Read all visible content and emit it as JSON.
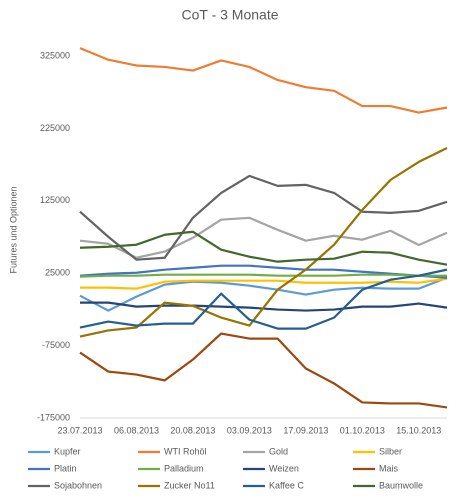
{
  "chart_data": {
    "type": "line",
    "title": "CoT - 3 Monate",
    "y_label": "Futures und Optionen",
    "categories": [
      "23.07.2013",
      null,
      "06.08.2013",
      null,
      "20.08.2013",
      null,
      "03.09.2013",
      null,
      "17.09.2013",
      null,
      "01.10.2013",
      null,
      "15.10.2013",
      null
    ],
    "ylim": [
      -175000,
      350000
    ],
    "yticks": [
      -175000,
      -75000,
      25000,
      125000,
      225000,
      325000
    ],
    "grid": false,
    "series": [
      {
        "name": "Kupfer",
        "color": "#5b9bd5",
        "values": [
          -6000,
          -26600,
          -7300,
          9300,
          13300,
          11900,
          7800,
          2300,
          -4500,
          2300,
          5000,
          3700,
          3700,
          18800
        ]
      },
      {
        "name": "WTI Rohöl",
        "color": "#ed7d31",
        "values": [
          336000,
          320000,
          312000,
          310000,
          305000,
          319000,
          310000,
          292000,
          282000,
          277000,
          256000,
          256000,
          247000,
          254000
        ]
      },
      {
        "name": "Gold",
        "color": "#a5a5a5",
        "values": [
          70000,
          65700,
          46400,
          55000,
          74000,
          99000,
          101600,
          85000,
          70000,
          76800,
          71300,
          83700,
          64000,
          81000
        ]
      },
      {
        "name": "Silber",
        "color": "#ffc000",
        "values": [
          5100,
          5100,
          3700,
          13300,
          14700,
          14700,
          14700,
          14700,
          11900,
          11900,
          11900,
          13300,
          11900,
          17400
        ]
      },
      {
        "name": "Platin",
        "color": "#4472c4",
        "values": [
          21600,
          24400,
          25700,
          29900,
          32600,
          35400,
          35400,
          32600,
          29900,
          29900,
          27100,
          24400,
          21600,
          18800
        ]
      },
      {
        "name": "Palladium",
        "color": "#70ad47",
        "values": [
          20300,
          21600,
          21600,
          23000,
          23000,
          23000,
          23000,
          21600,
          21600,
          21600,
          23000,
          23000,
          21600,
          21600
        ]
      },
      {
        "name": "Weizen",
        "color": "#264478",
        "values": [
          -15600,
          -15600,
          -21100,
          -19700,
          -19700,
          -21100,
          -22500,
          -25200,
          -26600,
          -25200,
          -21100,
          -21100,
          -16900,
          -22500
        ]
      },
      {
        "name": "Mais",
        "color": "#9e480e",
        "values": [
          -84600,
          -110800,
          -115000,
          -123000,
          -94200,
          -58400,
          -65300,
          -65300,
          -106600,
          -127300,
          -153500,
          -154900,
          -154900,
          -160400
        ]
      },
      {
        "name": "Sojabohnen",
        "color": "#636363",
        "values": [
          110000,
          75400,
          43700,
          46400,
          101600,
          136000,
          159500,
          145700,
          147100,
          136000,
          110000,
          108400,
          111200,
          123700
        ]
      },
      {
        "name": "Zucker No11",
        "color": "#997300",
        "values": [
          -62500,
          -54000,
          -50000,
          -15600,
          -20000,
          -36300,
          -47300,
          2300,
          30000,
          64400,
          112600,
          154000,
          178800,
          198000
        ]
      },
      {
        "name": "Kaffee C",
        "color": "#255e91",
        "values": [
          -50000,
          -41800,
          -47300,
          -44600,
          -44600,
          -3200,
          -39100,
          -51500,
          -51500,
          -36300,
          2300,
          16100,
          21600,
          30000
        ]
      },
      {
        "name": "Baumwolle",
        "color": "#43682b",
        "values": [
          60200,
          61600,
          64400,
          78200,
          82300,
          57500,
          47800,
          41000,
          43700,
          45100,
          54700,
          53300,
          43700,
          36800
        ]
      }
    ]
  }
}
